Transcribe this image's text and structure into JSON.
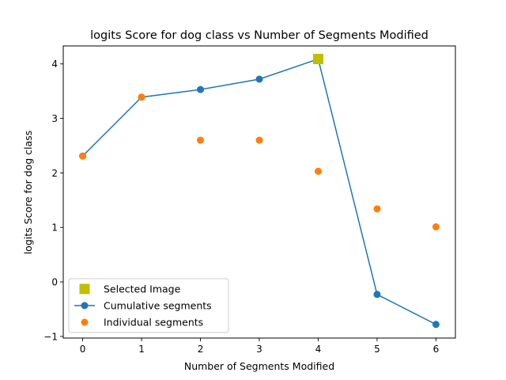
{
  "chart_data": {
    "type": "line",
    "title": "logits Score for dog class vs Number of Segments Modified",
    "xlabel": "Number of Segments Modified",
    "ylabel": "logits Score for dog class",
    "xlim": [
      -0.33,
      6.33
    ],
    "ylim": [
      -1.03,
      4.33
    ],
    "x_ticks": [
      "0",
      "1",
      "2",
      "3",
      "4",
      "5",
      "6"
    ],
    "y_ticks": [
      "−1",
      "0",
      "1",
      "2",
      "3",
      "4"
    ],
    "grid": false,
    "legend_position": "lower left",
    "series": [
      {
        "name": "Cumulative segments",
        "kind": "line-marker",
        "color": "#1f77b4",
        "x": [
          0,
          1,
          2,
          3,
          4,
          5,
          6
        ],
        "y": [
          2.31,
          3.39,
          3.53,
          3.72,
          4.09,
          -0.23,
          -0.78
        ]
      },
      {
        "name": "Individual segments",
        "kind": "scatter",
        "color": "#ff7f0e",
        "x": [
          0,
          1,
          2,
          3,
          4,
          5,
          6
        ],
        "y": [
          2.31,
          3.39,
          2.6,
          2.6,
          2.03,
          1.34,
          1.01
        ]
      },
      {
        "name": "Selected Image",
        "kind": "square-marker",
        "color": "#bfbf00",
        "x": [
          4
        ],
        "y": [
          4.09
        ]
      }
    ]
  }
}
